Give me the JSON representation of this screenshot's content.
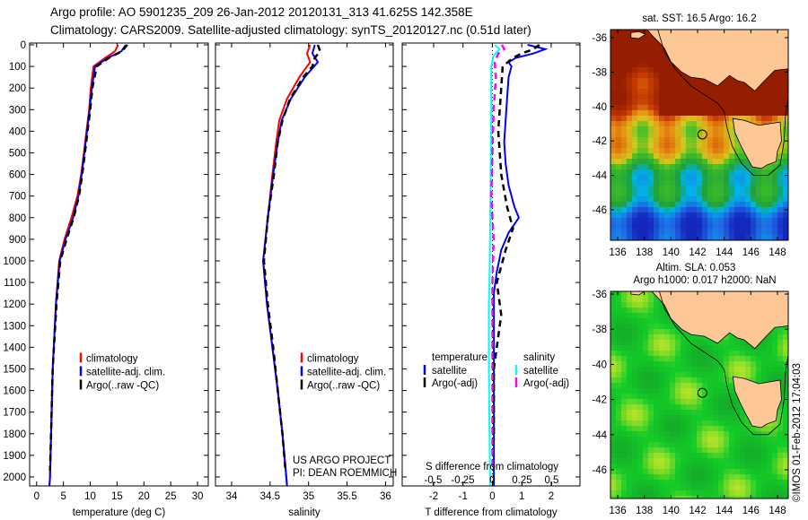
{
  "title": {
    "line1": "Argo profile: AO 5901235_209 26-Jan-2012 20120131_313 41.625S 142.358E",
    "line2": "Climatology: CARS2009. Satellite-adjusted climatology: synTS_20120127.nc (0.51d later)"
  },
  "colors": {
    "clim": "#ff0000",
    "sat": "#0000ff",
    "argo": "#000000",
    "sal_sat": "#00ffff",
    "sal_argo": "#ff00ff",
    "land": "#fdc896"
  },
  "chart_data": [
    {
      "type": "line",
      "name": "temperature",
      "xlabel": "temperature (deg C)",
      "ylabel": "",
      "xlim": [
        -1.3,
        32
      ],
      "ylim": [
        2050,
        0
      ],
      "xticks": [
        0,
        5,
        10,
        15,
        20,
        25,
        30
      ],
      "yticks": [
        0,
        100,
        200,
        300,
        400,
        500,
        600,
        700,
        800,
        900,
        1000,
        1100,
        1200,
        1300,
        1400,
        1500,
        1600,
        1700,
        1800,
        1900,
        2000
      ],
      "legend": [
        "climatology",
        "satellite-adj. clim.",
        "Argo(..raw -QC)"
      ],
      "series": [
        {
          "name": "climatology",
          "color_key": "clim",
          "dash": false,
          "depth": [
            0,
            30,
            60,
            100,
            200,
            300,
            400,
            500,
            600,
            700,
            800,
            900,
            1000,
            1200,
            1500,
            1800,
            2000,
            2040
          ],
          "values": [
            15.2,
            14.6,
            12.8,
            10.6,
            10.1,
            9.8,
            9.3,
            8.8,
            8.3,
            7.6,
            6.5,
            5.2,
            4.2,
            3.6,
            3.0,
            2.7,
            2.5,
            2.4
          ]
        },
        {
          "name": "satellite-adj. clim.",
          "color_key": "sat",
          "dash": false,
          "depth": [
            0,
            30,
            60,
            100,
            200,
            300,
            400,
            500,
            600,
            700,
            800,
            900,
            1000,
            1200,
            1500,
            1800,
            2000,
            2040
          ],
          "values": [
            16.6,
            15.8,
            13.3,
            10.9,
            10.3,
            9.9,
            9.4,
            8.9,
            8.4,
            7.8,
            6.8,
            5.4,
            4.3,
            3.6,
            3.0,
            2.7,
            2.5,
            2.4
          ]
        },
        {
          "name": "Argo(..raw -QC)",
          "color_key": "argo",
          "dash": true,
          "depth": [
            0,
            30,
            60,
            100,
            200,
            300,
            400,
            500,
            600,
            700,
            800,
            900,
            1000,
            1200,
            1500,
            1800,
            1970
          ],
          "values": [
            16.9,
            15.9,
            13.5,
            11.2,
            10.4,
            10.0,
            9.5,
            9.0,
            8.5,
            7.9,
            6.9,
            5.6,
            4.4,
            3.7,
            3.0,
            2.7,
            2.5
          ]
        }
      ]
    },
    {
      "type": "line",
      "name": "salinity",
      "xlabel": "salinity",
      "xlim": [
        33.79,
        36.1
      ],
      "ylim": [
        2050,
        0
      ],
      "xticks": [
        34,
        34.5,
        35,
        35.5,
        36
      ],
      "legend": [
        "climatology",
        "satellite-adj. clim.",
        "Argo(..raw -QC)"
      ],
      "annotation": [
        "US ARGO PROJECT",
        "PI: DEAN ROEMMICH"
      ],
      "series": [
        {
          "name": "climatology",
          "color_key": "clim",
          "dash": false,
          "depth": [
            0,
            40,
            80,
            150,
            250,
            350,
            450,
            600,
            800,
            1000,
            1200,
            1400,
            1600,
            1800,
            2000,
            2040
          ],
          "values": [
            35.02,
            34.98,
            35.02,
            34.88,
            34.72,
            34.62,
            34.58,
            34.53,
            34.47,
            34.41,
            34.46,
            34.53,
            34.6,
            34.66,
            34.71,
            34.72
          ]
        },
        {
          "name": "satellite-adj. clim.",
          "color_key": "sat",
          "dash": false,
          "depth": [
            0,
            40,
            80,
            150,
            250,
            350,
            450,
            600,
            800,
            1000,
            1200,
            1400,
            1600,
            1800,
            2000,
            2040
          ],
          "values": [
            35.08,
            35.05,
            35.12,
            34.95,
            34.77,
            34.65,
            34.6,
            34.54,
            34.47,
            34.41,
            34.46,
            34.53,
            34.6,
            34.66,
            34.71,
            34.72
          ]
        },
        {
          "name": "Argo(..raw -QC)",
          "color_key": "argo",
          "dash": true,
          "depth": [
            0,
            30,
            60,
            100,
            150,
            250,
            350,
            450,
            600,
            800,
            1000,
            1200,
            1400,
            1600,
            1800,
            1970
          ],
          "values": [
            35.12,
            35.15,
            35.08,
            35.05,
            34.93,
            34.76,
            34.66,
            34.6,
            34.55,
            34.47,
            34.42,
            34.47,
            34.54,
            34.6,
            34.66,
            34.7
          ]
        }
      ]
    },
    {
      "type": "line",
      "name": "differences",
      "xlabel": "T difference from climatology",
      "xlim": [
        -3.07,
        2.98
      ],
      "xticks": [
        -2,
        -1,
        0,
        1,
        2
      ],
      "top_xlabel": "S difference from climatology",
      "top_xticks": [
        -0.5,
        -0.25,
        0,
        0.25,
        0.5
      ],
      "top_xtick_labels": [
        "-0.5",
        "-0.25",
        "0",
        "0.25",
        "0.5"
      ],
      "ylim": [
        2050,
        0
      ],
      "legend_headers": [
        "temperature",
        "salinity"
      ],
      "legend": [
        "satellite",
        "Argo(-adj)",
        "satellite",
        "Argo(-adj)"
      ],
      "series": [
        {
          "name": "T satellite",
          "color_key": "sat",
          "dash": false,
          "units": "T",
          "depth": [
            0,
            20,
            40,
            60,
            80,
            100,
            150,
            250,
            350,
            450,
            550,
            650,
            750,
            800,
            830,
            870,
            950,
            1050,
            1150,
            1300,
            1600,
            2000,
            2040
          ],
          "values": [
            1.2,
            1.8,
            1.4,
            0.8,
            0.55,
            0.65,
            0.55,
            0.5,
            0.45,
            0.4,
            0.45,
            0.55,
            0.75,
            0.9,
            0.75,
            0.55,
            0.3,
            0.15,
            0.05,
            0.05,
            0.05,
            0.05,
            0.05
          ]
        },
        {
          "name": "T Argo(-adj)",
          "color_key": "argo",
          "dash": true,
          "units": "T",
          "depth": [
            0,
            20,
            40,
            60,
            100,
            200,
            400,
            600,
            750,
            850,
            950,
            1100,
            1250,
            1350,
            1500,
            1800,
            1970
          ],
          "values": [
            1.6,
            1.4,
            1.0,
            0.7,
            0.35,
            0.3,
            0.2,
            0.3,
            0.5,
            0.7,
            0.45,
            0.15,
            0.3,
            0.2,
            0.05,
            0.05,
            0.0
          ]
        },
        {
          "name": "S satellite",
          "color_key": "sal_sat",
          "dash": false,
          "units": "S",
          "depth": [
            0,
            20,
            50,
            100,
            300,
            600,
            900,
            1100,
            1200,
            1500,
            2000,
            2040
          ],
          "values": [
            0.02,
            0.06,
            0.01,
            -0.01,
            -0.01,
            -0.015,
            -0.02,
            -0.025,
            -0.03,
            -0.03,
            -0.02,
            -0.02
          ]
        },
        {
          "name": "S Argo(-adj)",
          "color_key": "sal_argo",
          "dash": true,
          "units": "S",
          "depth": [
            0,
            20,
            40,
            80,
            150,
            300,
            500,
            700,
            900,
            1100,
            1400,
            1700,
            1970
          ],
          "values": [
            0.08,
            0.1,
            0.05,
            0.02,
            0.03,
            0.01,
            0.0,
            -0.01,
            0.01,
            0.0,
            0.0,
            0.0,
            0.0
          ]
        }
      ]
    }
  ],
  "maps": [
    {
      "title": "sat. SST: 16.5 Argo: 16.2",
      "kind": "sst"
    },
    {
      "title": "Altim. SLA: 0.053",
      "subtitle": "Argo h1000: 0.017 h2000: NaN",
      "kind": "sla"
    }
  ],
  "map_axes": {
    "lon_ticks": [
      136,
      138,
      140,
      142,
      144,
      146,
      148
    ],
    "lat_ticks": [
      -36,
      -38,
      -40,
      -42,
      -44,
      -46
    ],
    "lon_range": [
      135.46,
      148.8
    ],
    "lat_range": [
      -35.5,
      -47.8
    ],
    "argo_position": [
      142.358,
      -41.625
    ]
  },
  "credit": "©IMOS 01-Feb-2012 17:04:03"
}
